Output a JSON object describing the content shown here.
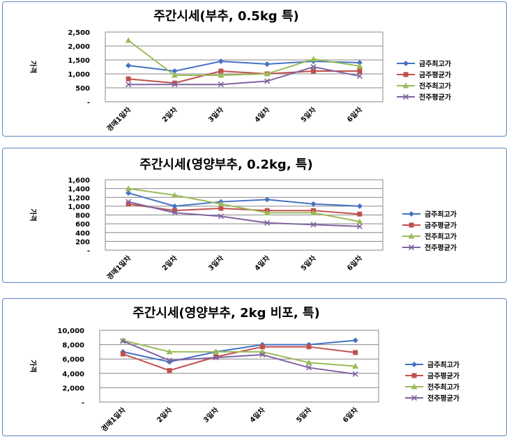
{
  "colors": {
    "s0": "#4472C4",
    "s1": "#C0504D",
    "s2": "#9BBB59",
    "s3": "#8064A2",
    "grid": "#878787",
    "border": "#5B86C4"
  },
  "chart_data": [
    {
      "type": "line",
      "title": "주간시세(부추, 0.5kg 특)",
      "ylabel": "가격",
      "categories": [
        "경매1일차",
        "2일차",
        "3일차",
        "4일차",
        "5일차",
        "6일차"
      ],
      "ylim": [
        0,
        2500
      ],
      "yticks": [
        0,
        500,
        1000,
        1500,
        2000,
        2500
      ],
      "ytick_labels": [
        "-",
        "500",
        "1,000",
        "1,500",
        "2,000",
        "2,500"
      ],
      "grid": true,
      "legend": "right",
      "series": [
        {
          "name": "금주최고가",
          "marker": "diamond",
          "values": [
            1300,
            1100,
            1450,
            1350,
            1450,
            1400
          ]
        },
        {
          "name": "금주평균가",
          "marker": "square",
          "values": [
            820,
            670,
            1100,
            1000,
            1100,
            1100
          ]
        },
        {
          "name": "전주최고가",
          "marker": "triangle",
          "values": [
            2200,
            950,
            950,
            1000,
            1530,
            1280
          ]
        },
        {
          "name": "전주평균가",
          "marker": "x",
          "values": [
            620,
            620,
            620,
            740,
            1250,
            920
          ]
        }
      ]
    },
    {
      "type": "line",
      "title": "주간시세(영양부추, 0.2kg, 특)",
      "ylabel": "가격",
      "categories": [
        "경매1일차",
        "2일차",
        "3일차",
        "4일차",
        "5일차",
        "6일차"
      ],
      "ylim": [
        0,
        1600
      ],
      "yticks": [
        0,
        200,
        400,
        600,
        800,
        1000,
        1200,
        1400,
        1600
      ],
      "ytick_labels": [
        "-",
        "200",
        "400",
        "600",
        "800",
        "1,000",
        "1,200",
        "1,400",
        "1,600"
      ],
      "grid": true,
      "legend": "right",
      "series": [
        {
          "name": "금주최고가",
          "marker": "diamond",
          "values": [
            1300,
            1000,
            1100,
            1150,
            1050,
            1000
          ]
        },
        {
          "name": "금주평균가",
          "marker": "square",
          "values": [
            1050,
            900,
            950,
            900,
            900,
            820
          ]
        },
        {
          "name": "전주최고가",
          "marker": "triangle",
          "values": [
            1400,
            1250,
            1050,
            850,
            850,
            650
          ]
        },
        {
          "name": "전주평균가",
          "marker": "x",
          "values": [
            1100,
            850,
            770,
            620,
            580,
            540
          ]
        }
      ]
    },
    {
      "type": "line",
      "title": "주간시세(영양부추, 2kg 비포, 특)",
      "ylabel": "가격",
      "categories": [
        "경매1일차",
        "2일차",
        "3일차",
        "4일차",
        "5일차",
        "6일차"
      ],
      "ylim": [
        0,
        10000
      ],
      "yticks": [
        0,
        2000,
        4000,
        6000,
        8000,
        10000
      ],
      "ytick_labels": [
        "-",
        "2,000",
        "4,000",
        "6,000",
        "8,000",
        "10,000"
      ],
      "grid": true,
      "legend": "right",
      "series": [
        {
          "name": "금주최고가",
          "marker": "diamond",
          "values": [
            7000,
            5600,
            7000,
            8000,
            8000,
            8600
          ]
        },
        {
          "name": "금주평균가",
          "marker": "square",
          "values": [
            6700,
            4400,
            6300,
            7700,
            7700,
            6900
          ]
        },
        {
          "name": "전주최고가",
          "marker": "triangle",
          "values": [
            8600,
            7000,
            7000,
            7000,
            5500,
            5000
          ]
        },
        {
          "name": "전주평균가",
          "marker": "x",
          "values": [
            8500,
            5800,
            6200,
            6600,
            4800,
            3900
          ]
        }
      ]
    }
  ]
}
